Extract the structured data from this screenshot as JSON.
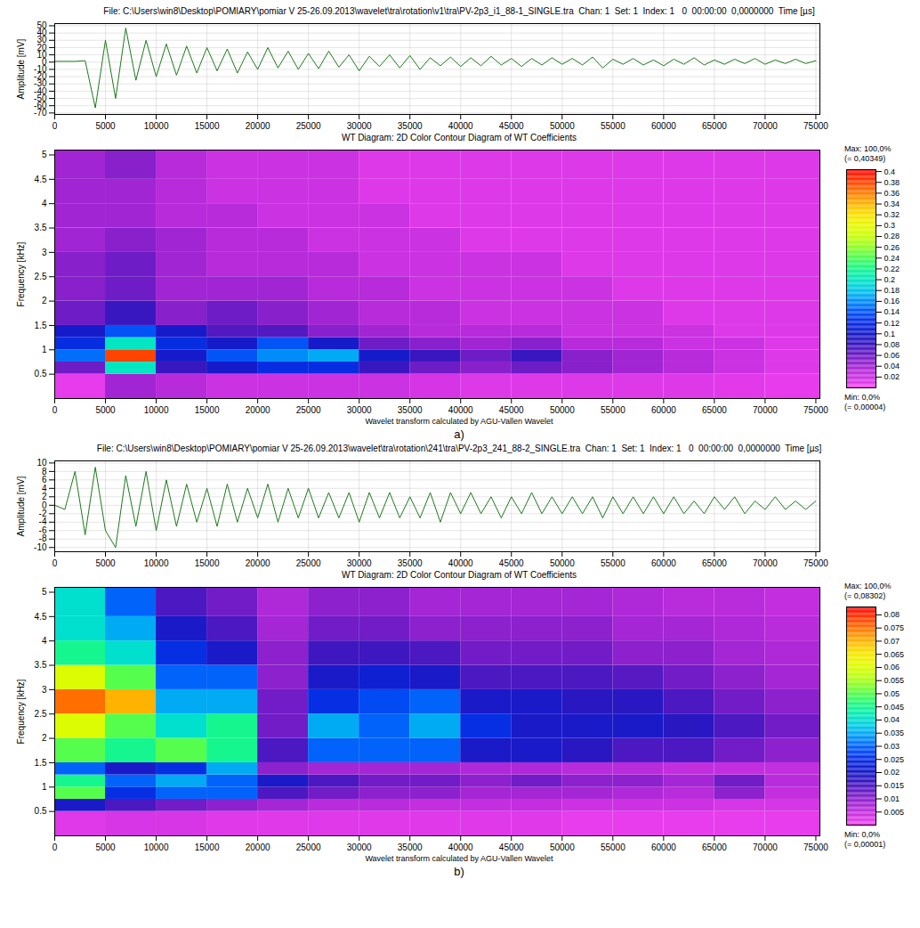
{
  "chart_data": [
    {
      "type": "line",
      "title": "File: C:\\Users\\win8\\Desktop\\POMIARY\\pomiar V 25-26.09.2013\\wavelet\\tra\\rotation\\v1\\tra\\PV-2p3_i1_88-1_SINGLE.tra  Chan: 1  Set: 1  Index: 1   0  00:00:00  0,0000000  Time [µs]",
      "ylabel": "Amplitude [mV]",
      "color": "#1c7a1c",
      "grid": true,
      "xlim": [
        0,
        75400
      ],
      "xticks": [
        0,
        5000,
        10000,
        15000,
        20000,
        25000,
        30000,
        35000,
        40000,
        45000,
        50000,
        55000,
        60000,
        65000,
        70000,
        75000
      ],
      "ylim": [
        -72,
        53
      ],
      "yticks": [
        -70,
        -60,
        -50,
        -40,
        -30,
        -20,
        -10,
        0,
        10,
        20,
        30,
        40,
        50
      ],
      "x": [
        0,
        1000,
        2000,
        3000,
        4000,
        5000,
        6000,
        7000,
        8000,
        9000,
        10000,
        11000,
        12000,
        13000,
        14000,
        15000,
        16000,
        17000,
        18000,
        19000,
        20000,
        21000,
        22000,
        23000,
        24000,
        25000,
        26000,
        27000,
        28000,
        29000,
        30000,
        31000,
        32000,
        33000,
        34000,
        35000,
        36000,
        37000,
        38000,
        39000,
        40000,
        41000,
        42000,
        43000,
        44000,
        45000,
        46000,
        47000,
        48000,
        49000,
        50000,
        51000,
        52000,
        53000,
        54000,
        55000,
        56000,
        57000,
        58000,
        59000,
        60000,
        61000,
        62000,
        63000,
        64000,
        65000,
        66000,
        67000,
        68000,
        69000,
        70000,
        71000,
        72000,
        73000,
        74000,
        75000
      ],
      "values": [
        1,
        1,
        1,
        2,
        -63,
        30,
        -50,
        47,
        -25,
        30,
        -20,
        25,
        -18,
        22,
        -15,
        20,
        -12,
        18,
        -15,
        14,
        -10,
        20,
        -8,
        15,
        -10,
        12,
        -9,
        15,
        -7,
        10,
        -12,
        8,
        -6,
        10,
        -8,
        9,
        -10,
        6,
        -5,
        7,
        -6,
        6,
        -5,
        8,
        -4,
        5,
        -6,
        5,
        -4,
        6,
        -3,
        5,
        -4,
        7,
        -8,
        4,
        -3,
        5,
        -4,
        3,
        -5,
        4,
        -3,
        6,
        -4,
        3,
        -3,
        4,
        -2,
        5,
        -3,
        3,
        -2,
        4,
        -2,
        2
      ]
    },
    {
      "type": "heatmap",
      "title": "WT Diagram: 2D Color Contour Diagram of WT Coefficients",
      "caption": "Wavelet transform calculated by AGU-Vallen Wavelet",
      "panel_label": "a)",
      "ylabel": "Frequency [kHz]",
      "xlim": [
        0,
        75400
      ],
      "xticks": [
        0,
        5000,
        10000,
        15000,
        20000,
        25000,
        30000,
        35000,
        40000,
        45000,
        50000,
        55000,
        60000,
        65000,
        70000,
        75000
      ],
      "ylim": [
        0,
        5.1
      ],
      "yticks": [
        0.5,
        1,
        1.5,
        2,
        2.5,
        3,
        3.5,
        4,
        4.5,
        5
      ],
      "x_bins": [
        0,
        5000,
        10000,
        15000,
        20000,
        25000,
        30000,
        35000,
        40000,
        45000,
        50000,
        55000,
        60000,
        65000,
        70000,
        75400
      ],
      "y_bins": [
        0,
        0.5,
        0.75,
        1,
        1.25,
        1.5,
        2,
        2.5,
        3,
        3.5,
        4,
        4.5,
        5.1
      ],
      "cells": [
        [
          0.005,
          0.04,
          0.03,
          0.02,
          0.02,
          0.02,
          0.02,
          0.015,
          0.01,
          0.01,
          0.01,
          0.01,
          0.01,
          0.008,
          0.005
        ],
        [
          0.06,
          0.2,
          0.08,
          0.1,
          0.12,
          0.12,
          0.08,
          0.06,
          0.05,
          0.06,
          0.05,
          0.04,
          0.03,
          0.02,
          0.01
        ],
        [
          0.15,
          0.38,
          0.1,
          0.14,
          0.16,
          0.17,
          0.1,
          0.08,
          0.06,
          0.08,
          0.05,
          0.04,
          0.03,
          0.02,
          0.01
        ],
        [
          0.12,
          0.2,
          0.12,
          0.1,
          0.14,
          0.1,
          0.06,
          0.05,
          0.04,
          0.05,
          0.03,
          0.03,
          0.02,
          0.02,
          0.01
        ],
        [
          0.1,
          0.14,
          0.1,
          0.07,
          0.07,
          0.05,
          0.04,
          0.03,
          0.03,
          0.03,
          0.02,
          0.02,
          0.02,
          0.01,
          0.01
        ],
        [
          0.06,
          0.08,
          0.05,
          0.06,
          0.05,
          0.04,
          0.03,
          0.03,
          0.02,
          0.02,
          0.02,
          0.02,
          0.01,
          0.01,
          0.01
        ],
        [
          0.05,
          0.06,
          0.04,
          0.04,
          0.04,
          0.03,
          0.03,
          0.02,
          0.02,
          0.02,
          0.02,
          0.01,
          0.01,
          0.01,
          0.01
        ],
        [
          0.05,
          0.06,
          0.04,
          0.03,
          0.03,
          0.03,
          0.02,
          0.02,
          0.02,
          0.02,
          0.01,
          0.01,
          0.01,
          0.01,
          0.01
        ],
        [
          0.04,
          0.05,
          0.04,
          0.03,
          0.03,
          0.02,
          0.02,
          0.02,
          0.01,
          0.01,
          0.01,
          0.01,
          0.01,
          0.01,
          0.01
        ],
        [
          0.04,
          0.04,
          0.03,
          0.03,
          0.02,
          0.02,
          0.02,
          0.01,
          0.01,
          0.01,
          0.01,
          0.01,
          0.01,
          0.01,
          0.01
        ],
        [
          0.04,
          0.04,
          0.03,
          0.02,
          0.02,
          0.02,
          0.01,
          0.01,
          0.01,
          0.01,
          0.01,
          0.01,
          0.01,
          0.01,
          0.01
        ],
        [
          0.04,
          0.05,
          0.03,
          0.02,
          0.02,
          0.02,
          0.01,
          0.01,
          0.01,
          0.01,
          0.01,
          0.01,
          0.01,
          0.01,
          0.01
        ]
      ],
      "colorbar": {
        "range": [
          4e-05,
          0.40349
        ],
        "ticks": [
          0.02,
          0.04,
          0.06,
          0.08,
          0.1,
          0.12,
          0.14,
          0.16,
          0.18,
          0.2,
          0.22,
          0.24,
          0.26,
          0.28,
          0.3,
          0.32,
          0.34,
          0.36,
          0.38,
          0.4
        ],
        "max_label": [
          "Max: 100,0%",
          "(= 0,40349)"
        ],
        "min_label": [
          "Min: 0,0%",
          "(= 0,00004)"
        ]
      }
    },
    {
      "type": "line",
      "title": "File: C:\\Users\\win8\\Desktop\\POMIARY\\pomiar V 25-26.09.2013\\wavelet\\tra\\rotation\\241\\tra\\PV-2p3_241_88-2_SINGLE.tra  Chan: 1  Set: 1  Index: 1   0  00:00:00  0,0000000  Time [µs]",
      "ylabel": "Amplitude [mV]",
      "color": "#1c7a1c",
      "grid": true,
      "xlim": [
        0,
        75400
      ],
      "xticks": [
        0,
        5000,
        10000,
        15000,
        20000,
        25000,
        30000,
        35000,
        40000,
        45000,
        50000,
        55000,
        60000,
        65000,
        70000,
        75000
      ],
      "ylim": [
        -11,
        10.5
      ],
      "yticks": [
        -10,
        -8,
        -6,
        -4,
        -2,
        0,
        2,
        4,
        6,
        8,
        10
      ],
      "x": [
        0,
        1000,
        2000,
        3000,
        4000,
        5000,
        6000,
        7000,
        8000,
        9000,
        10000,
        11000,
        12000,
        13000,
        14000,
        15000,
        16000,
        17000,
        18000,
        19000,
        20000,
        21000,
        22000,
        23000,
        24000,
        25000,
        26000,
        27000,
        28000,
        29000,
        30000,
        31000,
        32000,
        33000,
        34000,
        35000,
        36000,
        37000,
        38000,
        39000,
        40000,
        41000,
        42000,
        43000,
        44000,
        45000,
        46000,
        47000,
        48000,
        49000,
        50000,
        51000,
        52000,
        53000,
        54000,
        55000,
        56000,
        57000,
        58000,
        59000,
        60000,
        61000,
        62000,
        63000,
        64000,
        65000,
        66000,
        67000,
        68000,
        69000,
        70000,
        71000,
        72000,
        73000,
        74000,
        75000
      ],
      "values": [
        0,
        -1,
        8,
        -7,
        9,
        -6,
        -10,
        7,
        -5,
        8,
        -6,
        6,
        -5,
        5,
        -4,
        4,
        -5,
        5,
        -4,
        4,
        -3,
        5,
        -4,
        4,
        -3,
        4,
        -3,
        3,
        -3,
        3,
        -4,
        3,
        -3,
        3,
        -3,
        2,
        -3,
        3,
        -4,
        3,
        -2,
        3,
        -2,
        2,
        -3,
        2,
        -2,
        3,
        -2,
        2,
        -2,
        2,
        -2,
        2,
        -3,
        2,
        -2,
        2,
        -2,
        2,
        -2,
        2,
        -2,
        1,
        -2,
        2,
        -1,
        2,
        -2,
        1,
        -1,
        2,
        -1,
        1,
        -1,
        1
      ]
    },
    {
      "type": "heatmap",
      "title": "WT Diagram: 2D Color Contour Diagram of WT Coefficients",
      "caption": "Wavelet transform calculated by AGU-Vallen Wavelet",
      "panel_label": "b)",
      "ylabel": "Frequency [kHz]",
      "xlim": [
        0,
        75400
      ],
      "xticks": [
        0,
        5000,
        10000,
        15000,
        20000,
        25000,
        30000,
        35000,
        40000,
        45000,
        50000,
        55000,
        60000,
        65000,
        70000,
        75000
      ],
      "ylim": [
        0,
        5.1
      ],
      "yticks": [
        0.5,
        1,
        1.5,
        2,
        2.5,
        3,
        3.5,
        4,
        4.5,
        5
      ],
      "x_bins": [
        0,
        5000,
        10000,
        15000,
        20000,
        25000,
        30000,
        35000,
        40000,
        45000,
        50000,
        55000,
        60000,
        65000,
        70000,
        75400
      ],
      "y_bins": [
        0,
        0.5,
        0.75,
        1,
        1.25,
        1.5,
        2,
        2.5,
        3,
        3.5,
        4,
        4.5,
        5.1
      ],
      "cells": [
        [
          0.002,
          0.003,
          0.003,
          0.002,
          0.002,
          0.002,
          0.002,
          0.002,
          0.002,
          0.002,
          0.001,
          0.001,
          0.001,
          0.001,
          0.001
        ],
        [
          0.02,
          0.015,
          0.012,
          0.01,
          0.008,
          0.006,
          0.006,
          0.005,
          0.005,
          0.005,
          0.004,
          0.004,
          0.004,
          0.003,
          0.003
        ],
        [
          0.05,
          0.025,
          0.03,
          0.03,
          0.015,
          0.012,
          0.01,
          0.01,
          0.008,
          0.008,
          0.008,
          0.007,
          0.006,
          0.01,
          0.005
        ],
        [
          0.045,
          0.03,
          0.035,
          0.03,
          0.02,
          0.015,
          0.012,
          0.012,
          0.01,
          0.012,
          0.01,
          0.01,
          0.008,
          0.012,
          0.006
        ],
        [
          0.03,
          0.02,
          0.025,
          0.035,
          0.01,
          0.008,
          0.008,
          0.008,
          0.007,
          0.007,
          0.006,
          0.006,
          0.005,
          0.005,
          0.005
        ],
        [
          0.05,
          0.045,
          0.05,
          0.045,
          0.015,
          0.03,
          0.03,
          0.03,
          0.02,
          0.02,
          0.018,
          0.015,
          0.015,
          0.012,
          0.01
        ],
        [
          0.06,
          0.05,
          0.04,
          0.045,
          0.012,
          0.035,
          0.03,
          0.035,
          0.025,
          0.02,
          0.02,
          0.02,
          0.018,
          0.015,
          0.012
        ],
        [
          0.075,
          0.07,
          0.035,
          0.035,
          0.012,
          0.025,
          0.028,
          0.03,
          0.02,
          0.02,
          0.018,
          0.018,
          0.015,
          0.012,
          0.01
        ],
        [
          0.06,
          0.05,
          0.03,
          0.03,
          0.01,
          0.02,
          0.022,
          0.02,
          0.015,
          0.015,
          0.015,
          0.014,
          0.012,
          0.01,
          0.008
        ],
        [
          0.045,
          0.04,
          0.025,
          0.02,
          0.01,
          0.016,
          0.016,
          0.015,
          0.012,
          0.012,
          0.012,
          0.01,
          0.01,
          0.008,
          0.007
        ],
        [
          0.04,
          0.035,
          0.02,
          0.015,
          0.008,
          0.012,
          0.012,
          0.01,
          0.01,
          0.01,
          0.01,
          0.008,
          0.008,
          0.007,
          0.006
        ],
        [
          0.04,
          0.03,
          0.015,
          0.012,
          0.007,
          0.01,
          0.01,
          0.008,
          0.008,
          0.008,
          0.008,
          0.007,
          0.006,
          0.006,
          0.005
        ]
      ],
      "colorbar": {
        "range": [
          1e-05,
          0.08302
        ],
        "ticks": [
          0.005,
          0.01,
          0.015,
          0.02,
          0.025,
          0.03,
          0.035,
          0.04,
          0.045,
          0.05,
          0.055,
          0.06,
          0.065,
          0.07,
          0.075,
          0.08
        ],
        "max_label": [
          "Max: 100,0%",
          "(= 0,08302)"
        ],
        "min_label": [
          "Min: 0,0%",
          "(= 0,00001)"
        ]
      }
    }
  ]
}
